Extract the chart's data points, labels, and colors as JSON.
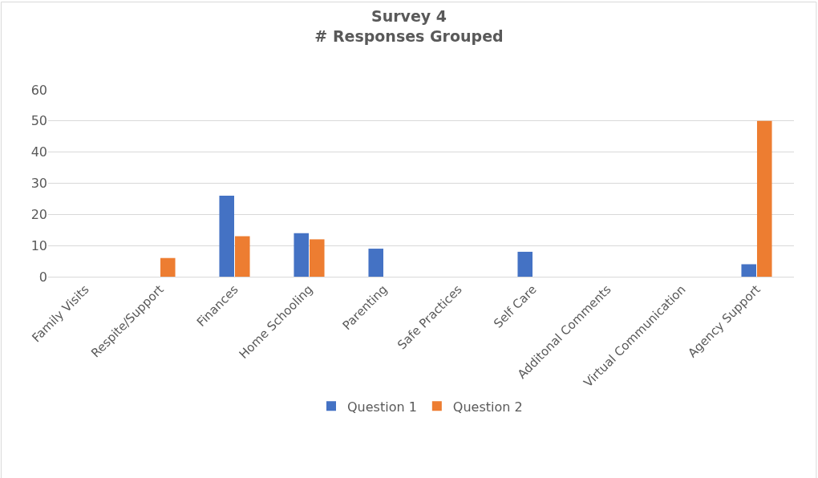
{
  "chart_data": {
    "type": "bar",
    "title": "Survey 4\n# Responses Grouped",
    "categories": [
      "Family Visits",
      "Respite/Support",
      "Finances",
      "Home Schooling",
      "Parenting",
      "Safe Practices",
      "Self Care",
      "Additonal Comments",
      "Virtual Communication",
      "Agency Support"
    ],
    "series": [
      {
        "name": "Question 1",
        "color": "#4472c4",
        "values": [
          0,
          0,
          26,
          14,
          9,
          0,
          8,
          0,
          0,
          4
        ]
      },
      {
        "name": "Question 2",
        "color": "#ed7d31",
        "values": [
          0,
          6,
          13,
          12,
          0,
          0,
          0,
          0,
          0,
          50
        ]
      }
    ],
    "ylim": [
      0,
      60
    ],
    "yticks": [
      0,
      10,
      20,
      30,
      40,
      50,
      60
    ],
    "grid": "y",
    "legend": "bottom"
  }
}
